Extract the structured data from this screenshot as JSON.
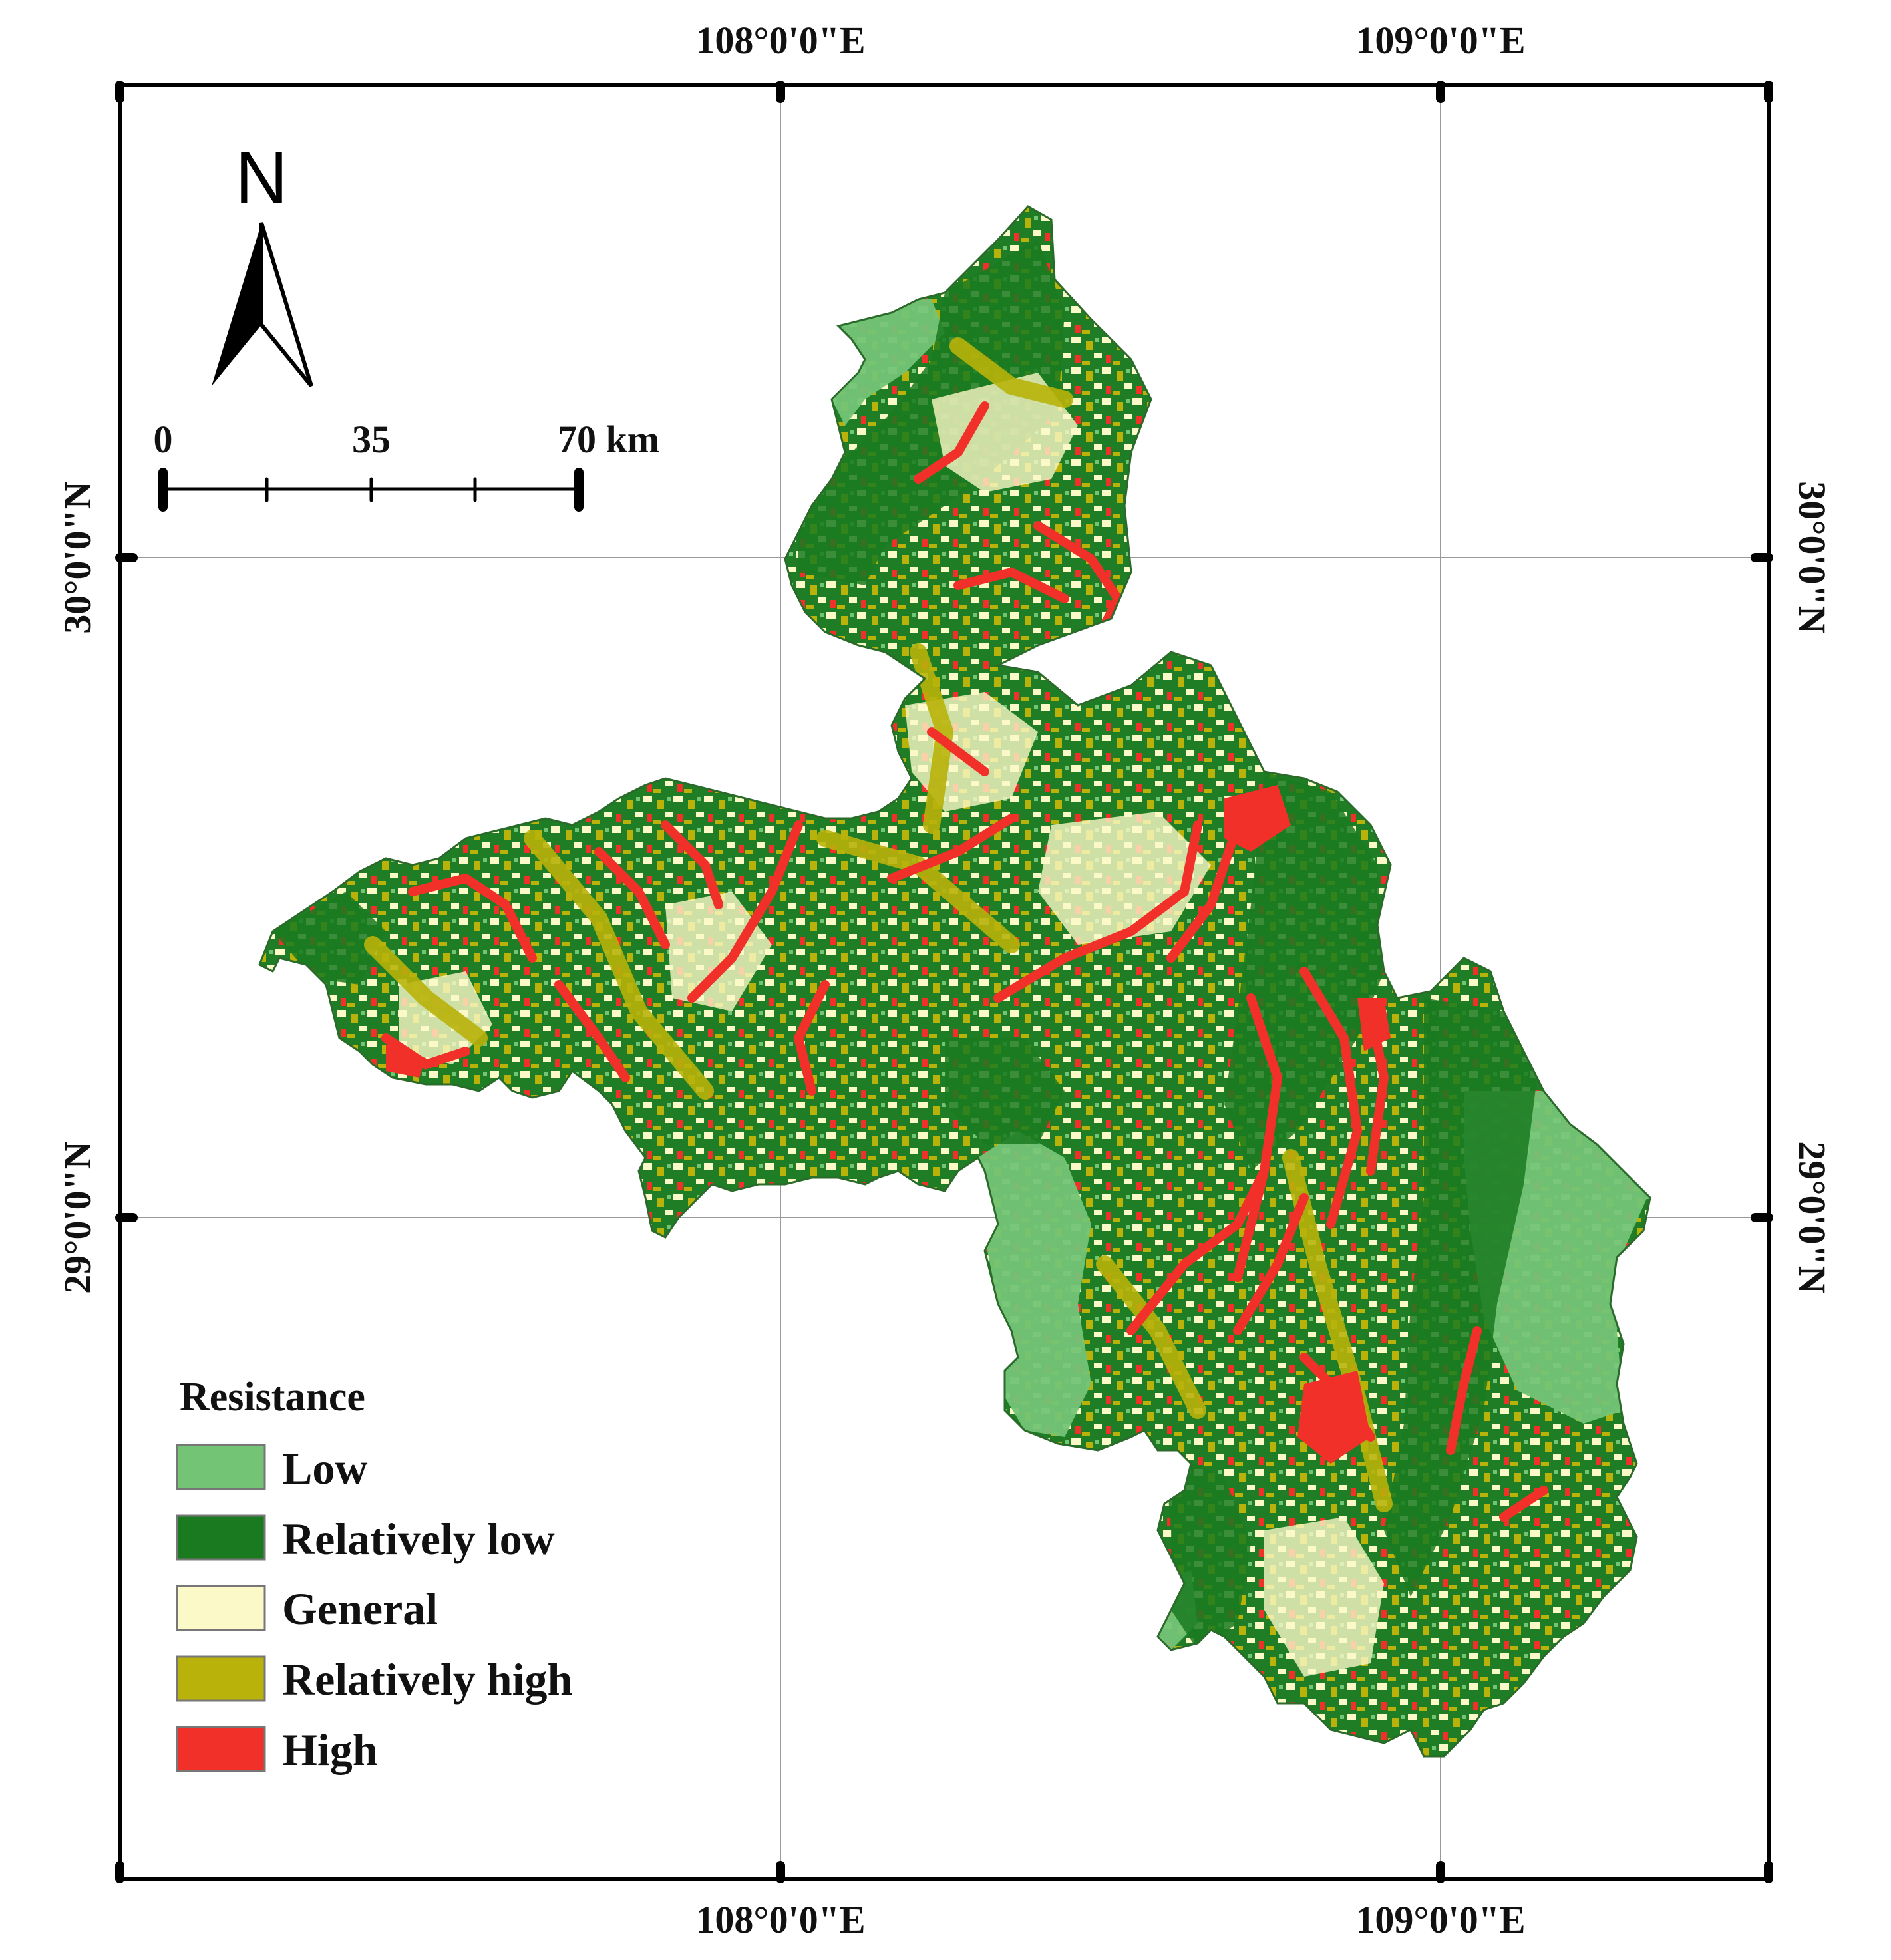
{
  "legend": {
    "title": "Resistance",
    "items": [
      {
        "label": "Low",
        "color": "#74c476"
      },
      {
        "label": "Relatively low",
        "color": "#1a7a20"
      },
      {
        "label": "General",
        "color": "#fbf9c8"
      },
      {
        "label": "Relatively high",
        "color": "#b8b20a"
      },
      {
        "label": "High",
        "color": "#f2302a"
      }
    ]
  },
  "graticule": {
    "top": [
      "108°0'0\"E",
      "109°0'0\"E"
    ],
    "bottom": [
      "108°0'0\"E",
      "109°0'0\"E"
    ],
    "left": [
      "30°0'0\"N",
      "29°0'0\"N"
    ],
    "right": [
      "30°0'0\"N",
      "29°0'0\"N"
    ]
  },
  "north_arrow": {
    "label": "N"
  },
  "scale_bar": {
    "labels": [
      "0",
      "35",
      "70 km"
    ]
  }
}
